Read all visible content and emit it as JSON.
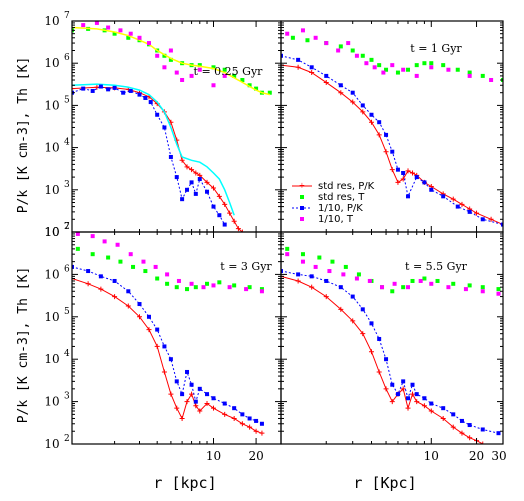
{
  "chart_data": {
    "type": "scatter",
    "figure": {
      "ylabel_top": "P/k [K cm-3], Th [K]",
      "ylabel_bottom": "P/k [K cm-3], Th [K]",
      "xlabel_left": "r  [kpc]",
      "xlabel_right": "r  [Kpc]",
      "y_tick_base": "10",
      "y_tick_exponents": [
        "2",
        "3",
        "4",
        "5",
        "6",
        "7"
      ],
      "x_tick_labels_left": [
        "10",
        "20"
      ],
      "x_tick_labels_right": [
        "10",
        "20",
        "30"
      ],
      "ylim": [
        100,
        10000000
      ],
      "xlim": [
        1,
        30
      ],
      "yscale": "log",
      "xscale": "log"
    },
    "legend": {
      "location": "lower-right of top-right panel",
      "entries": [
        {
          "label": "std res, P/K",
          "color": "#ff0000",
          "marker": "plus-line"
        },
        {
          "label": "std res, T",
          "color": "#00ff00",
          "marker": "square"
        },
        {
          "label": "1/10, P/K",
          "color": "#0000ff",
          "marker": "square-dotted"
        },
        {
          "label": "1/10, T",
          "color": "#ff00ff",
          "marker": "square"
        }
      ]
    },
    "panels": [
      {
        "label": "t = 0.25 Gyr",
        "series": [
          {
            "name": "std res, P/K",
            "color": "#ff0000",
            "marker": "plus-line",
            "x": [
              1.0,
              1.5,
              2.0,
              2.5,
              3.0,
              3.5,
              4.0,
              4.5,
              5.0,
              5.5,
              6.0,
              6.5,
              7.0,
              7.5,
              8.0,
              9.0,
              10.0,
              11.0,
              12.0,
              13.0,
              14.0,
              15.0,
              16.0
            ],
            "y": [
              250000,
              270000,
              260000,
              240000,
              200000,
              160000,
              110000,
              70000,
              40000,
              15000,
              5000,
              3500,
              3000,
              2500,
              2200,
              1500,
              1100,
              700,
              450,
              280,
              180,
              120,
              100
            ]
          },
          {
            "name": "std res, T",
            "color": "#00ff00",
            "marker": "square",
            "x": [
              1.0,
              1.3,
              1.7,
              2.0,
              2.5,
              3.0,
              3.5,
              4.0,
              4.5,
              5.0,
              6.0,
              7.0,
              8.0,
              10.0,
              12.0,
              14.0,
              16.0,
              18.0,
              20.0,
              22.0,
              25.0
            ],
            "y": [
              6000000,
              6500000,
              6000000,
              5000000,
              4000000,
              3500000,
              2800000,
              2000000,
              1500000,
              1200000,
              1000000,
              900000,
              900000,
              800000,
              700000,
              500000,
              400000,
              300000,
              250000,
              200000,
              200000
            ]
          },
          {
            "name": "yellow curve",
            "color": "#ffff00",
            "marker": "line",
            "x": [
              1.0,
              1.5,
              2.0,
              2.5,
              3.0,
              3.5,
              4.0,
              5.0,
              6.0,
              7.0,
              8.0,
              10.0,
              12.0,
              14.0,
              16.0,
              18.0,
              20.0,
              22.0,
              25.0
            ],
            "y": [
              7000000,
              6500000,
              5500000,
              4500000,
              3500000,
              2800000,
              2000000,
              1300000,
              1000000,
              900000,
              850000,
              750000,
              600000,
              450000,
              350000,
              280000,
              230000,
              200000,
              180000
            ]
          },
          {
            "name": "cyan curve",
            "color": "#00ffff",
            "marker": "line",
            "x": [
              1.0,
              1.5,
              2.0,
              2.5,
              3.0,
              3.5,
              4.0,
              4.5,
              5.0,
              5.5,
              6.0,
              7.0,
              8.0,
              9.0,
              10.0,
              11.0,
              12.0,
              13.0,
              14.0
            ],
            "y": [
              300000,
              320000,
              300000,
              270000,
              230000,
              180000,
              120000,
              70000,
              30000,
              12000,
              6000,
              5000,
              4500,
              3500,
              2500,
              1800,
              1000,
              500,
              250
            ]
          },
          {
            "name": "1/10, P/K",
            "color": "#0000ff",
            "marker": "square-dotted",
            "x": [
              1.0,
              1.2,
              1.4,
              1.6,
              1.8,
              2.0,
              2.3,
              2.6,
              3.0,
              3.3,
              3.6,
              4.0,
              4.5,
              5.0,
              5.5,
              6.0,
              6.5,
              7.0,
              7.5,
              8.0,
              9.0,
              10.0,
              11.0,
              12.0
            ],
            "y": [
              200000,
              250000,
              220000,
              280000,
              240000,
              260000,
              200000,
              220000,
              180000,
              150000,
              120000,
              60000,
              30000,
              6000,
              2000,
              600,
              1000,
              1500,
              800,
              1800,
              900,
              400,
              250,
              150
            ]
          },
          {
            "name": "1/10, T",
            "color": "#ff00ff",
            "marker": "square",
            "x": [
              1.2,
              1.5,
              1.8,
              2.2,
              2.6,
              3.0,
              3.5,
              4.0,
              4.5,
              5.0,
              5.5,
              6.0,
              7.0,
              8.0,
              10.0,
              12.0
            ],
            "y": [
              8000000,
              9000000,
              7000000,
              6000000,
              5000000,
              4000000,
              3000000,
              1500000,
              800000,
              2000000,
              600000,
              400000,
              500000,
              700000,
              300000,
              500000
            ]
          }
        ]
      },
      {
        "label": "t = 1 Gyr",
        "series": [
          {
            "name": "std res, P/K",
            "color": "#ff0000",
            "marker": "plus-line",
            "x": [
              1.0,
              1.3,
              1.6,
              2.0,
              2.5,
              3.0,
              3.5,
              4.0,
              4.5,
              5.0,
              5.5,
              6.0,
              6.5,
              7.0,
              7.5,
              8.0,
              9.0,
              10.0,
              12.0,
              14.0,
              16.0,
              18.0,
              20.0,
              25.0,
              30.0
            ],
            "y": [
              900000,
              800000,
              600000,
              350000,
              200000,
              120000,
              70000,
              40000,
              20000,
              8000,
              3000,
              1500,
              1800,
              2800,
              2500,
              2200,
              1500,
              1200,
              800,
              600,
              450,
              350,
              280,
              200,
              150
            ]
          },
          {
            "name": "std res, T",
            "color": "#00ff00",
            "marker": "square",
            "x": [
              1.2,
              1.5,
              2.0,
              2.5,
              3.0,
              3.5,
              4.0,
              4.5,
              5.0,
              6.0,
              7.0,
              8.0,
              9.0,
              10.0,
              12.0,
              15.0,
              18.0,
              22.0,
              30.0
            ],
            "y": [
              4000000,
              3500000,
              3000000,
              2500000,
              2000000,
              1500000,
              1200000,
              900000,
              700000,
              600000,
              700000,
              900000,
              1000000,
              1000000,
              900000,
              700000,
              600000,
              500000,
              400000
            ]
          },
          {
            "name": "1/10, P/K",
            "color": "#0000ff",
            "marker": "square-dotted",
            "x": [
              1.0,
              1.3,
              1.6,
              2.0,
              2.5,
              3.0,
              3.5,
              4.0,
              4.5,
              5.0,
              5.5,
              6.0,
              6.5,
              7.0,
              8.0,
              9.0,
              10.0,
              12.0,
              15.0,
              18.0,
              22.0,
              30.0
            ],
            "y": [
              1500000,
              1200000,
              800000,
              500000,
              300000,
              200000,
              100000,
              60000,
              40000,
              20000,
              8000,
              3000,
              2500,
              700,
              2000,
              1500,
              1000,
              700,
              400,
              300,
              200,
              150
            ]
          },
          {
            "name": "1/10, T",
            "color": "#ff00ff",
            "marker": "square",
            "x": [
              1.1,
              1.4,
              1.7,
              2.0,
              2.4,
              2.8,
              3.2,
              3.7,
              4.2,
              4.8,
              5.5,
              6.5,
              8.0,
              10.0,
              13.0,
              18.0,
              25.0
            ],
            "y": [
              5000000,
              6000000,
              4000000,
              3000000,
              2000000,
              3000000,
              1500000,
              1000000,
              800000,
              600000,
              900000,
              700000,
              500000,
              800000,
              700000,
              500000,
              400000
            ]
          }
        ]
      },
      {
        "label": "t = 3 Gyr",
        "series": [
          {
            "name": "std res, P/K",
            "color": "#ff0000",
            "marker": "plus-line",
            "x": [
              1.0,
              1.3,
              1.6,
              2.0,
              2.5,
              3.0,
              3.5,
              4.0,
              4.5,
              5.0,
              5.5,
              6.0,
              6.5,
              7.0,
              7.5,
              8.0,
              9.0,
              10.0,
              12.0,
              14.0,
              16.0,
              18.0,
              20.0,
              22.0
            ],
            "y": [
              800000,
              600000,
              450000,
              300000,
              180000,
              100000,
              50000,
              20000,
              5000,
              1500,
              700,
              400,
              1000,
              1500,
              800,
              600,
              900,
              700,
              500,
              400,
              300,
              250,
              200,
              180
            ]
          },
          {
            "name": "std res, T",
            "color": "#00ff00",
            "marker": "square",
            "x": [
              1.1,
              1.4,
              1.8,
              2.2,
              2.7,
              3.3,
              4.0,
              4.7,
              5.5,
              6.5,
              7.5,
              9.0,
              11.0,
              14.0,
              18.0,
              22.0
            ],
            "y": [
              4000000,
              3000000,
              2500000,
              2000000,
              1500000,
              1200000,
              800000,
              600000,
              500000,
              450000,
              500000,
              600000,
              650000,
              550000,
              500000,
              450000
            ]
          },
          {
            "name": "1/10, P/K",
            "color": "#0000ff",
            "marker": "square-dotted",
            "x": [
              1.0,
              1.3,
              1.6,
              2.0,
              2.5,
              3.0,
              3.5,
              4.0,
              4.5,
              5.0,
              5.5,
              6.0,
              6.5,
              7.0,
              7.5,
              8.0,
              9.0,
              10.0,
              12.0,
              14.0,
              16.0,
              18.0,
              20.0,
              22.0
            ],
            "y": [
              1500000,
              1200000,
              900000,
              700000,
              400000,
              200000,
              100000,
              50000,
              20000,
              10000,
              3000,
              1500,
              5000,
              2500,
              1000,
              2000,
              1500,
              1200,
              900,
              700,
              500,
              400,
              350,
              300
            ]
          },
          {
            "name": "1/10, T",
            "color": "#ff00ff",
            "marker": "square",
            "x": [
              1.1,
              1.4,
              1.7,
              2.1,
              2.6,
              3.2,
              3.9,
              4.7,
              5.7,
              7.0,
              8.5,
              10.0,
              13.0,
              17.0,
              22.0
            ],
            "y": [
              9000000,
              8000000,
              6000000,
              5000000,
              3000000,
              2000000,
              1500000,
              1000000,
              700000,
              600000,
              500000,
              550000,
              500000,
              450000,
              400000
            ]
          }
        ]
      },
      {
        "label": "t = 5.5 Gyr",
        "series": [
          {
            "name": "std res, P/K",
            "color": "#ff0000",
            "marker": "plus-line",
            "x": [
              1.0,
              1.3,
              1.6,
              2.0,
              2.5,
              3.0,
              3.5,
              4.0,
              4.5,
              5.0,
              5.5,
              6.0,
              6.5,
              7.0,
              7.5,
              8.0,
              9.0,
              10.0,
              12.0,
              14.0,
              16.0,
              18.0,
              20.0,
              22.0
            ],
            "y": [
              900000,
              700000,
              500000,
              300000,
              150000,
              80000,
              40000,
              15000,
              5000,
              2000,
              1000,
              1500,
              2000,
              700,
              1500,
              1000,
              800,
              600,
              400,
              250,
              180,
              140,
              120,
              100
            ]
          },
          {
            "name": "std res, T",
            "color": "#00ff00",
            "marker": "square",
            "x": [
              1.1,
              1.4,
              1.8,
              2.2,
              2.7,
              3.3,
              4.0,
              4.7,
              5.5,
              6.5,
              7.5,
              9.0,
              11.0,
              14.0,
              18.0,
              22.0,
              28.0
            ],
            "y": [
              4000000,
              3000000,
              2500000,
              2000000,
              1500000,
              1000000,
              700000,
              500000,
              400000,
              500000,
              700000,
              800000,
              700000,
              600000,
              550000,
              500000,
              450000
            ]
          },
          {
            "name": "1/10, P/K",
            "color": "#0000ff",
            "marker": "square-dotted",
            "x": [
              1.0,
              1.3,
              1.6,
              2.0,
              2.5,
              3.0,
              3.5,
              4.0,
              4.5,
              5.0,
              5.5,
              6.0,
              6.5,
              7.0,
              7.5,
              8.0,
              9.0,
              10.0,
              12.0,
              14.0,
              16.0,
              18.0,
              22.0,
              28.0
            ],
            "y": [
              1200000,
              1000000,
              900000,
              700000,
              500000,
              300000,
              150000,
              70000,
              30000,
              10000,
              2500,
              1500,
              3000,
              1200,
              2500,
              1500,
              1200,
              900,
              700,
              500,
              350,
              280,
              220,
              180
            ]
          },
          {
            "name": "1/10, T",
            "color": "#ff00ff",
            "marker": "square",
            "x": [
              1.1,
              1.4,
              1.7,
              2.1,
              2.6,
              3.2,
              3.9,
              4.7,
              5.7,
              7.0,
              8.5,
              10.0,
              13.0,
              17.0,
              22.0,
              28.0
            ],
            "y": [
              3000000,
              2000000,
              1500000,
              1200000,
              1000000,
              800000,
              700000,
              500000,
              600000,
              500000,
              700000,
              600000,
              500000,
              450000,
              400000,
              350000
            ]
          }
        ]
      }
    ]
  }
}
